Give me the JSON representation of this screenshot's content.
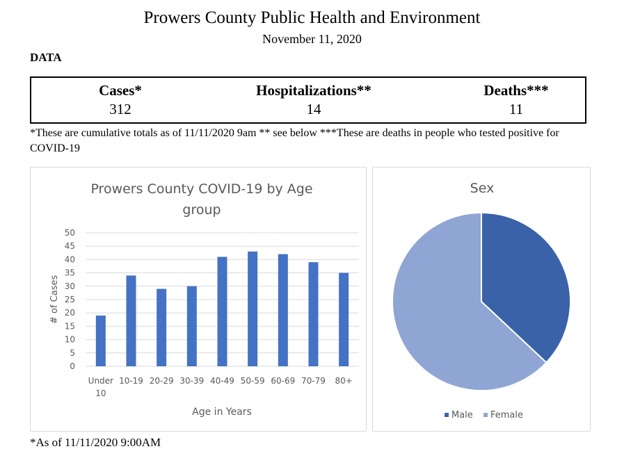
{
  "header": {
    "title": "Prowers County Public Health and Environment",
    "date": "November 11, 2020",
    "section": "DATA"
  },
  "stats": [
    {
      "label": "Cases*",
      "value": "312"
    },
    {
      "label": "Hospitalizations**",
      "value": "14"
    },
    {
      "label": "Deaths***",
      "value": "11"
    }
  ],
  "footnote": "*These are cumulative totals as of 11/11/2020 9am ** see below ***These are deaths in people who tested positive for COVID-19",
  "as_of": "*As of 11/11/2020 9:00AM",
  "chart_data": [
    {
      "type": "bar",
      "title_lines": [
        "Prowers County COVID-19 by Age",
        "group"
      ],
      "xlabel": "Age in Years",
      "ylabel": "# of Cases",
      "categories": [
        [
          "Under",
          "10"
        ],
        [
          "10-19"
        ],
        [
          "20-29"
        ],
        [
          "30-39"
        ],
        [
          "40-49"
        ],
        [
          "50-59"
        ],
        [
          "60-69"
        ],
        [
          "70-79"
        ],
        [
          "80+"
        ]
      ],
      "values": [
        19,
        34,
        29,
        30,
        41,
        43,
        42,
        39,
        35
      ],
      "ylim": [
        0,
        50
      ],
      "yticks": [
        "0",
        "5",
        "10",
        "15",
        "20",
        "25",
        "30",
        "35",
        "40",
        "45",
        "50"
      ],
      "grid": true,
      "color": "#4472c4"
    },
    {
      "type": "pie",
      "title": "Sex",
      "slices": [
        {
          "name": "Male",
          "percent": 37,
          "color": "#3a62a8"
        },
        {
          "name": "Female",
          "percent": 63,
          "color": "#8fa5d4"
        }
      ],
      "legend": "bottom"
    }
  ]
}
